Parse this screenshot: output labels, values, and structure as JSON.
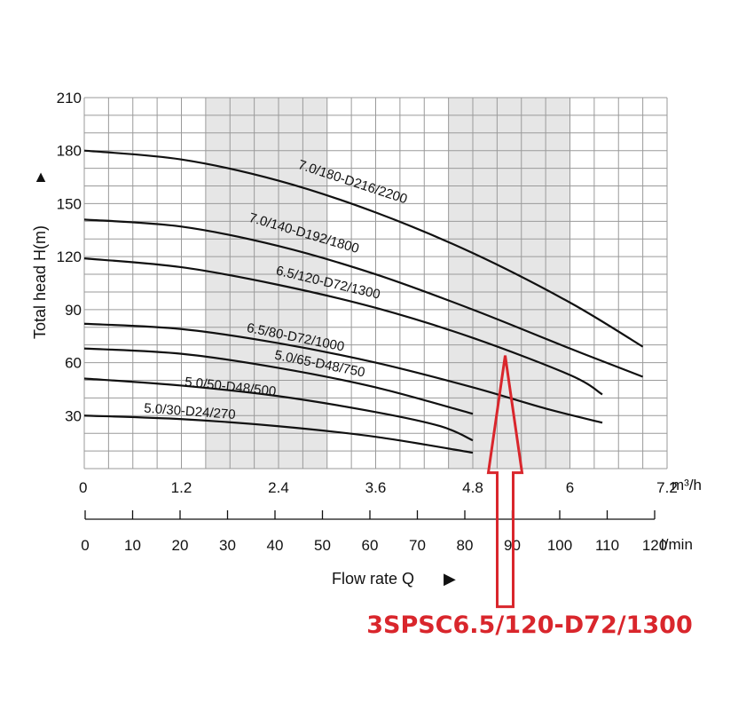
{
  "chart_data": {
    "type": "line",
    "x": {
      "range": [
        0,
        7.2
      ],
      "ticks": [
        0,
        0.3,
        0.6,
        0.9,
        1.2,
        1.5,
        1.8,
        2.1,
        2.4,
        2.7,
        3.0,
        3.3,
        3.6,
        3.9,
        4.2,
        4.5,
        4.8,
        5.1,
        5.4,
        5.7,
        6.0,
        6.3,
        6.6,
        6.9,
        7.2
      ],
      "tick_labels": [
        "0",
        "1.2",
        "2.4",
        "3.6",
        "4.8",
        "6",
        "7.2"
      ],
      "tick_label_values": [
        0,
        1.2,
        2.4,
        3.6,
        4.8,
        6.0,
        7.2
      ],
      "unit": "m³/h"
    },
    "x2": {
      "range": [
        0,
        120
      ],
      "tick_labels": [
        "0",
        "10",
        "20",
        "30",
        "40",
        "50",
        "60",
        "70",
        "80",
        "90",
        "100",
        "110",
        "120"
      ],
      "tick_values": [
        0,
        10,
        20,
        30,
        40,
        50,
        60,
        70,
        80,
        90,
        100,
        110,
        120
      ],
      "unit": "l/min"
    },
    "y": {
      "range": [
        0,
        210
      ],
      "tick_labels": [
        "30",
        "60",
        "90",
        "120",
        "150",
        "180",
        "210"
      ],
      "tick_values": [
        30,
        60,
        90,
        120,
        150,
        180,
        210
      ],
      "label": "Total head H(m)",
      "arrow": "▲"
    },
    "xlabel": "Flow rate Q",
    "xlabel_arrow": "▶",
    "grid": true,
    "shaded_x_ranges": [
      [
        1.5,
        3.0
      ],
      [
        4.5,
        6.0
      ]
    ],
    "series": [
      {
        "name": "7.0/180-D216/2200",
        "label_value": [
          3.3,
          160
        ],
        "points": [
          [
            0,
            180
          ],
          [
            1.2,
            175
          ],
          [
            2.4,
            163
          ],
          [
            3.6,
            145
          ],
          [
            4.8,
            122
          ],
          [
            6.0,
            94
          ],
          [
            6.9,
            69
          ]
        ]
      },
      {
        "name": "7.0/140-D192/1800",
        "label_value": [
          2.7,
          131
        ],
        "points": [
          [
            0,
            141
          ],
          [
            1.2,
            137
          ],
          [
            2.4,
            126
          ],
          [
            3.6,
            110
          ],
          [
            4.8,
            90
          ],
          [
            6.0,
            68
          ],
          [
            6.9,
            52
          ]
        ]
      },
      {
        "name": "6.5/120-D72/1300",
        "label_value": [
          3.0,
          103
        ],
        "points": [
          [
            0,
            119
          ],
          [
            1.2,
            114
          ],
          [
            2.4,
            104
          ],
          [
            3.6,
            91
          ],
          [
            4.8,
            74
          ],
          [
            6.0,
            53
          ],
          [
            6.4,
            42
          ]
        ]
      },
      {
        "name": "6.5/80-D72/1000",
        "label_value": [
          2.6,
          72
        ],
        "points": [
          [
            0,
            82
          ],
          [
            1.2,
            79
          ],
          [
            2.4,
            71
          ],
          [
            3.6,
            60
          ],
          [
            4.8,
            46
          ],
          [
            5.7,
            34
          ],
          [
            6.4,
            26
          ]
        ]
      },
      {
        "name": "5.0/65-D48/750",
        "label_value": [
          2.9,
          57
        ],
        "points": [
          [
            0,
            68
          ],
          [
            1.2,
            65
          ],
          [
            2.4,
            57
          ],
          [
            3.6,
            46
          ],
          [
            4.8,
            31
          ]
        ]
      },
      {
        "name": "5.0/50-D48/500",
        "label_value": [
          1.8,
          44
        ],
        "points": [
          [
            0,
            51
          ],
          [
            1.2,
            47
          ],
          [
            2.4,
            41
          ],
          [
            3.6,
            32
          ],
          [
            4.4,
            24
          ],
          [
            4.8,
            16
          ]
        ]
      },
      {
        "name": "5.0/30-D24/270",
        "label_value": [
          1.3,
          30
        ],
        "points": [
          [
            0,
            30
          ],
          [
            1.2,
            28
          ],
          [
            2.4,
            24
          ],
          [
            3.6,
            18
          ],
          [
            4.8,
            9
          ]
        ]
      }
    ],
    "callout": {
      "text": "3SPSC6.5/120-D72/1300",
      "color": "#d9262c",
      "arrow_tip": [
        5.2,
        64
      ]
    }
  }
}
